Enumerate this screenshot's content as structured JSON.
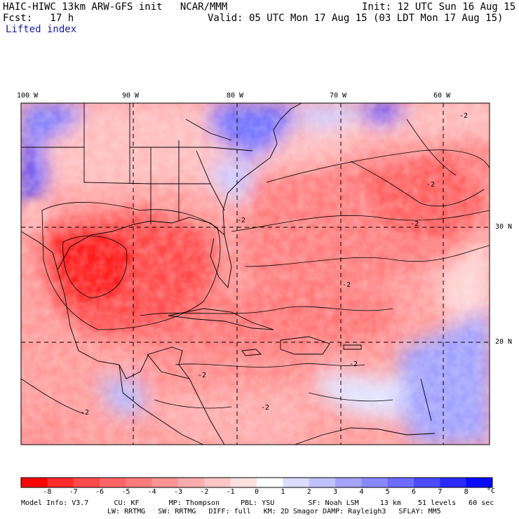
{
  "header": {
    "title_left": "HAIC-HIWC 13km ARW-GFS init   NCAR/MMM",
    "forecast_left": "Fcst:   17 h",
    "init_right": "Init: 12 UTC Sun 16 Aug 15",
    "valid_right": "Valid: 05 UTC Mon 17 Aug 15 (03 LDT Mon 17 Aug 15)",
    "field_name": "Lifted index"
  },
  "map": {
    "lon_labels": [
      "100 W",
      "90 W",
      "80 W",
      "70 W",
      "60 W"
    ],
    "lat_labels": [
      "30 N",
      "20 N"
    ],
    "contour_label": "-2"
  },
  "colorbar": {
    "ticks": [
      "-8",
      "-7",
      "-6",
      "-5",
      "-4",
      "-3",
      "-2",
      "-1",
      "0",
      "1",
      "2",
      "3",
      "4",
      "5",
      "6",
      "7",
      "8"
    ],
    "unit": "°C",
    "colors": [
      "#ff0000",
      "#ff2a2a",
      "#ff4a4a",
      "#ff6464",
      "#ff7c7c",
      "#ff9494",
      "#ffacac",
      "#ffc4c4",
      "#ffe0e0",
      "#ffffff",
      "#dcdcff",
      "#c0c0ff",
      "#a4a4ff",
      "#8888ff",
      "#6c6cff",
      "#4a4aff",
      "#2a2aff",
      "#0a0aff"
    ]
  },
  "footer": {
    "line1": "Model Info: V3.7      CU: KF       MP: Thompson     PBL: YSU        SF: Noah LSM     13 km    51 levels   60 sec",
    "line2": "LW: RRTMG   SW: RRTMG   DIFF: full   KM: 2D Smagor DAMP: Rayleigh3   SFLAY: MM5"
  }
}
